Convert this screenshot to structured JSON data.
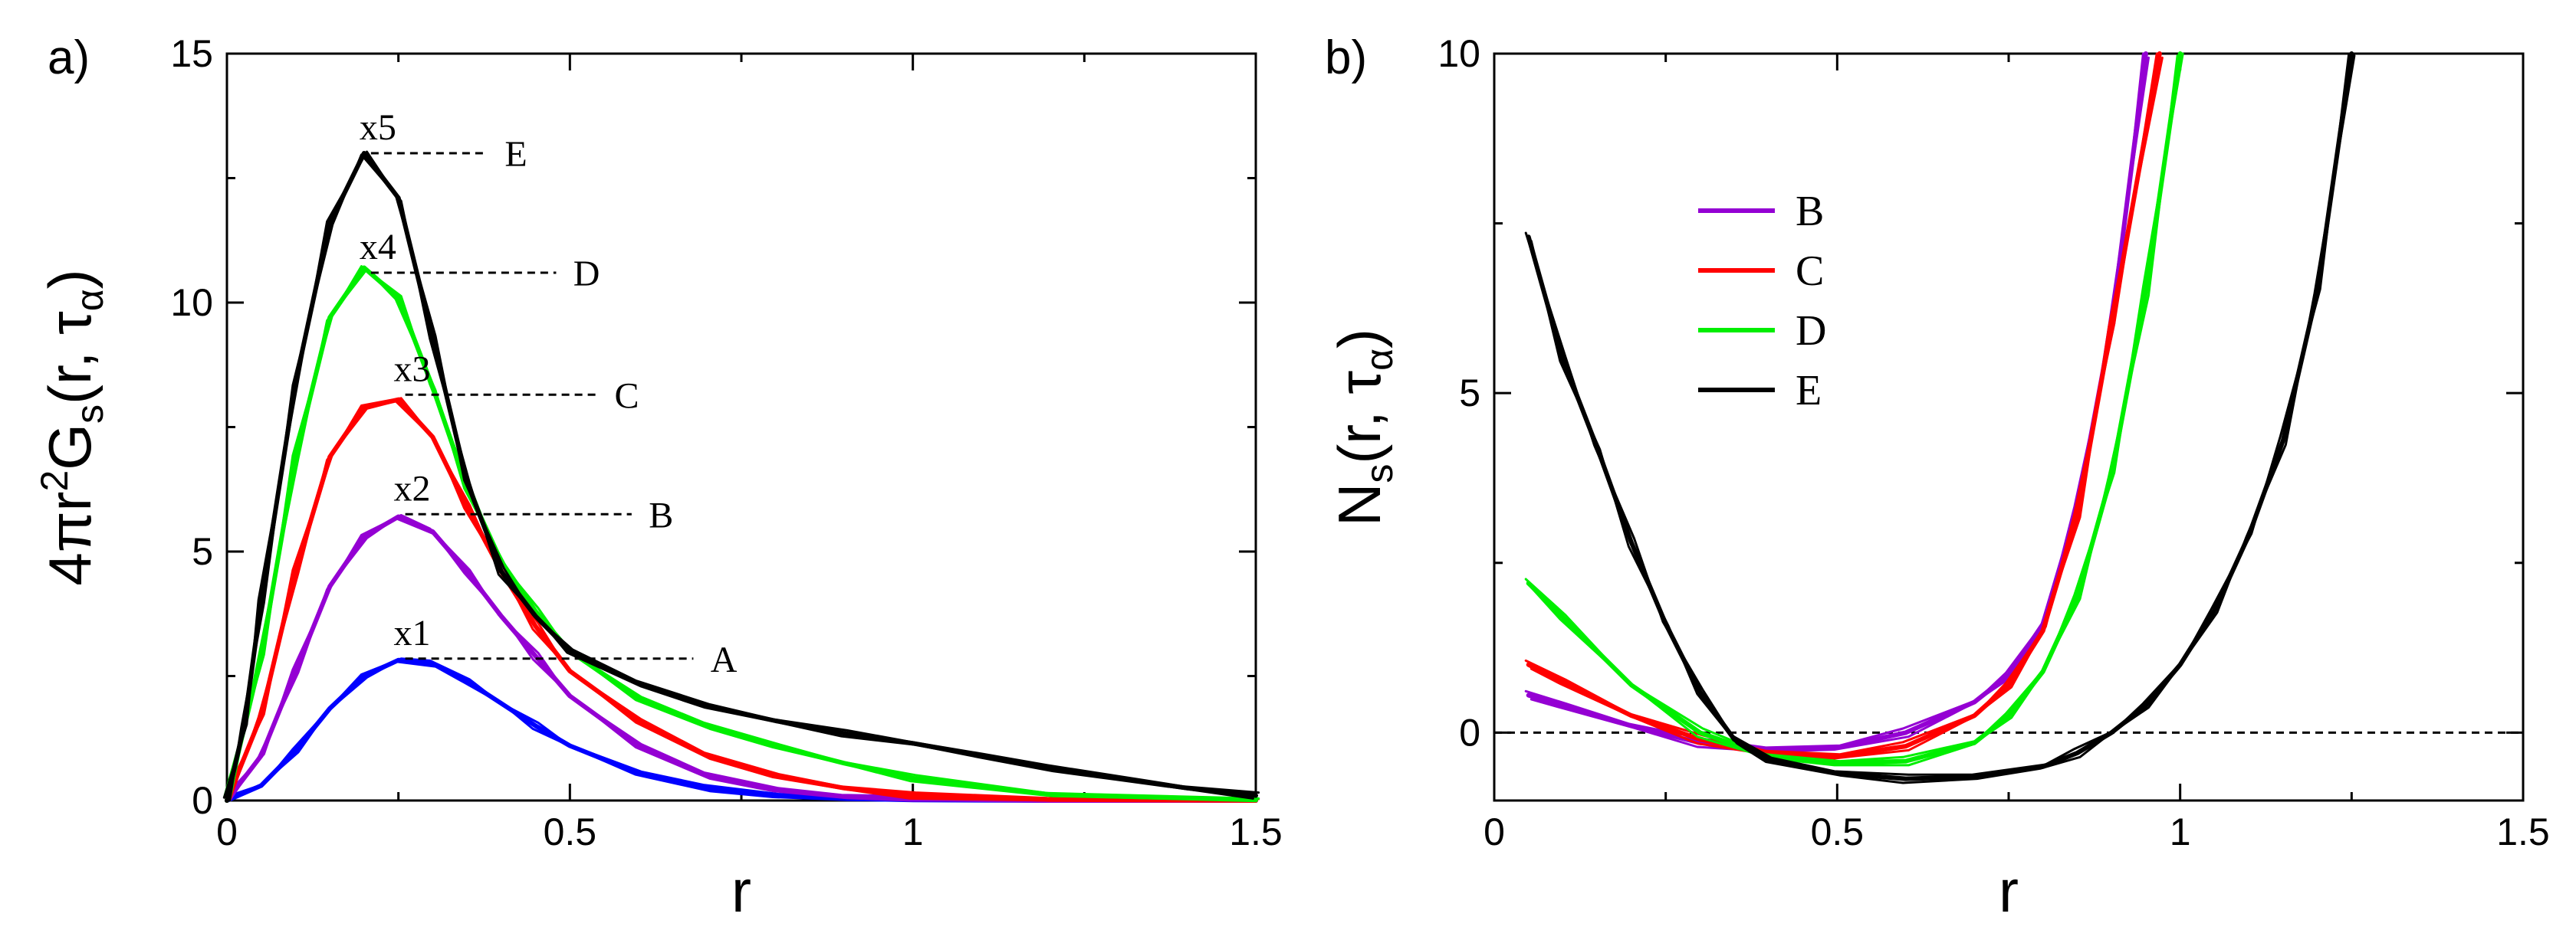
{
  "figure": {
    "panels": [
      "a)",
      "b)"
    ]
  },
  "chart_data": [
    {
      "panel": "a)",
      "type": "line",
      "title": "",
      "xlabel": "r",
      "ylabel_parts": {
        "prefix": "4πr",
        "sup": "2",
        "main": "G",
        "sub": "s",
        "args": "(r, τ",
        "arg_sub": "α",
        "close": ")"
      },
      "xlim": [
        0,
        1.5
      ],
      "ylim": [
        0,
        15
      ],
      "xticks": [
        0,
        0.5,
        1,
        1.5
      ],
      "xtick_labels": [
        "0",
        "0.5",
        "1",
        "1.5"
      ],
      "yticks": [
        0,
        5,
        10,
        15
      ],
      "ytick_labels": [
        "0",
        "5",
        "10",
        "15"
      ],
      "series": [
        {
          "name": "A",
          "color": "#0000ff",
          "multiplier": "x1",
          "peak": 2.85,
          "x": [
            0,
            0.05,
            0.1,
            0.15,
            0.2,
            0.25,
            0.3,
            0.35,
            0.4,
            0.45,
            0.5,
            0.6,
            0.7,
            0.8,
            0.9,
            1.0,
            1.2,
            1.5
          ],
          "y": [
            0,
            0.3,
            1.0,
            1.85,
            2.5,
            2.82,
            2.75,
            2.4,
            1.95,
            1.5,
            1.1,
            0.55,
            0.25,
            0.1,
            0.04,
            0.01,
            0,
            0
          ]
        },
        {
          "name": "B",
          "color": "#9400d3",
          "multiplier": "x2",
          "peak": 5.75,
          "x": [
            0,
            0.05,
            0.1,
            0.15,
            0.2,
            0.25,
            0.3,
            0.35,
            0.4,
            0.45,
            0.5,
            0.6,
            0.7,
            0.8,
            0.9,
            1.0,
            1.2,
            1.5
          ],
          "y": [
            0,
            0.9,
            2.6,
            4.3,
            5.3,
            5.7,
            5.4,
            4.6,
            3.7,
            2.9,
            2.1,
            1.1,
            0.5,
            0.22,
            0.08,
            0.03,
            0,
            0
          ]
        },
        {
          "name": "C",
          "color": "#ff0000",
          "multiplier": "x3",
          "peak": 8.15,
          "x": [
            0,
            0.05,
            0.1,
            0.15,
            0.2,
            0.25,
            0.3,
            0.35,
            0.4,
            0.45,
            0.5,
            0.6,
            0.7,
            0.8,
            0.9,
            1.0,
            1.2,
            1.5
          ],
          "y": [
            0,
            1.7,
            4.6,
            6.9,
            7.9,
            8.05,
            7.3,
            5.9,
            4.6,
            3.5,
            2.6,
            1.6,
            0.9,
            0.5,
            0.25,
            0.1,
            0.02,
            0
          ]
        },
        {
          "name": "D",
          "color": "#00ee00",
          "multiplier": "x4",
          "peak": 10.6,
          "x": [
            0,
            0.05,
            0.1,
            0.15,
            0.2,
            0.25,
            0.3,
            0.35,
            0.4,
            0.45,
            0.5,
            0.6,
            0.7,
            0.8,
            0.9,
            1.0,
            1.2,
            1.5
          ],
          "y": [
            0,
            2.9,
            6.9,
            9.7,
            10.7,
            10.1,
            8.3,
            6.3,
            4.8,
            3.8,
            3.0,
            2.05,
            1.5,
            1.1,
            0.75,
            0.45,
            0.12,
            0.01
          ]
        },
        {
          "name": "E",
          "color": "#000000",
          "multiplier": "x5",
          "peak": 13.0,
          "x": [
            0,
            0.025,
            0.05,
            0.1,
            0.15,
            0.2,
            0.25,
            0.3,
            0.35,
            0.4,
            0.45,
            0.5,
            0.6,
            0.7,
            0.8,
            0.9,
            1.0,
            1.1,
            1.2,
            1.3,
            1.4,
            1.5
          ],
          "y": [
            0,
            1.5,
            4.0,
            8.4,
            11.6,
            13.0,
            12.1,
            9.3,
            6.4,
            4.6,
            3.7,
            3.0,
            2.35,
            1.9,
            1.6,
            1.35,
            1.15,
            0.9,
            0.65,
            0.45,
            0.25,
            0.1
          ]
        }
      ],
      "annotations": [
        "x1",
        "x2",
        "x3",
        "x4",
        "x5",
        "A",
        "B",
        "C",
        "D",
        "E"
      ]
    },
    {
      "panel": "b)",
      "type": "line",
      "title": "",
      "xlabel": "r",
      "ylabel_parts": {
        "main": "N",
        "sub": "s",
        "args": "(r, τ",
        "arg_sub": "α",
        "close": ")"
      },
      "xlim": [
        0,
        1.5
      ],
      "ylim": [
        -1,
        10
      ],
      "xticks": [
        0,
        0.5,
        1,
        1.5
      ],
      "xtick_labels": [
        "0",
        "0.5",
        "1",
        "1.5"
      ],
      "yticks": [
        0,
        5,
        10
      ],
      "ytick_labels": [
        "0",
        "5",
        "10"
      ],
      "reference_line_y": 0,
      "legend": {
        "placement": "upper-left",
        "entries": [
          "B",
          "C",
          "D",
          "E"
        ]
      },
      "series": [
        {
          "name": "B",
          "color": "#9400d3",
          "x": [
            0.05,
            0.1,
            0.2,
            0.3,
            0.4,
            0.5,
            0.6,
            0.7,
            0.75,
            0.8,
            0.85,
            0.9,
            0.95
          ],
          "y": [
            0.55,
            0.4,
            0.1,
            -0.15,
            -0.25,
            -0.22,
            0.0,
            0.45,
            0.85,
            1.6,
            3.3,
            6.0,
            10.0
          ]
        },
        {
          "name": "C",
          "color": "#ff0000",
          "x": [
            0.05,
            0.1,
            0.2,
            0.3,
            0.4,
            0.5,
            0.6,
            0.7,
            0.75,
            0.8,
            0.85,
            0.9,
            0.97
          ],
          "y": [
            1.0,
            0.75,
            0.25,
            -0.1,
            -0.3,
            -0.35,
            -0.2,
            0.25,
            0.7,
            1.5,
            3.2,
            6.0,
            10.0
          ]
        },
        {
          "name": "D",
          "color": "#00ee00",
          "x": [
            0.05,
            0.1,
            0.2,
            0.3,
            0.4,
            0.5,
            0.6,
            0.7,
            0.75,
            0.8,
            0.85,
            0.9,
            0.95,
            1.0
          ],
          "y": [
            2.2,
            1.7,
            0.7,
            0.0,
            -0.35,
            -0.45,
            -0.42,
            -0.15,
            0.25,
            0.9,
            2.0,
            3.8,
            6.5,
            10.0
          ]
        },
        {
          "name": "E",
          "color": "#000000",
          "x": [
            0.05,
            0.1,
            0.15,
            0.2,
            0.25,
            0.3,
            0.35,
            0.4,
            0.5,
            0.6,
            0.7,
            0.8,
            0.85,
            0.9,
            0.95,
            1.0,
            1.05,
            1.1,
            1.15,
            1.2,
            1.25
          ],
          "y": [
            7.3,
            5.5,
            4.2,
            2.8,
            1.6,
            0.6,
            -0.1,
            -0.4,
            -0.6,
            -0.68,
            -0.65,
            -0.5,
            -0.3,
            0.0,
            0.4,
            1.0,
            1.8,
            2.9,
            4.3,
            6.5,
            10.0
          ]
        }
      ]
    }
  ]
}
